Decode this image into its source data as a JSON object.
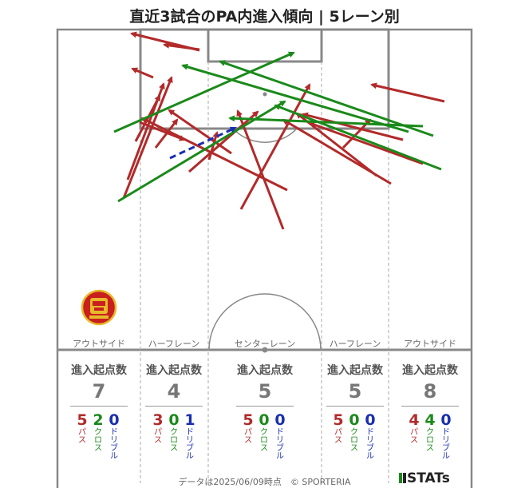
{
  "title": "直近3試合のPA内進入傾向 | 5レーン別",
  "lanes": [
    {
      "label": "アウトサイド",
      "stat_header": "進入起点数",
      "total": "7",
      "pass": "5",
      "cross": "2",
      "dribble": "0"
    },
    {
      "label": "ハーフレーン",
      "stat_header": "進入起点数",
      "total": "4",
      "pass": "3",
      "cross": "0",
      "dribble": "1"
    },
    {
      "label": "センターレーン",
      "stat_header": "進入起点数",
      "total": "5",
      "pass": "5",
      "cross": "0",
      "dribble": "0"
    },
    {
      "label": "ハーフレーン",
      "stat_header": "進入起点数",
      "total": "5",
      "pass": "5",
      "cross": "0",
      "dribble": "0"
    },
    {
      "label": "アウトサイド",
      "stat_header": "進入起点数",
      "total": "8",
      "pass": "4",
      "cross": "4",
      "dribble": "0"
    }
  ],
  "type_labels": {
    "pass": "パス",
    "cross": "クロス",
    "dribble": "ドリブル"
  },
  "colors": {
    "pass": "#b22a2a",
    "cross": "#1a8a1a",
    "dribble": "#1a2fb0",
    "pitch_line": "#888888",
    "lane_line": "#aaaaaa"
  },
  "footer": "データは2025/06/09時点　© SPORTERIA",
  "brand": "STATs",
  "logo_icon": "team-crest-icon"
}
